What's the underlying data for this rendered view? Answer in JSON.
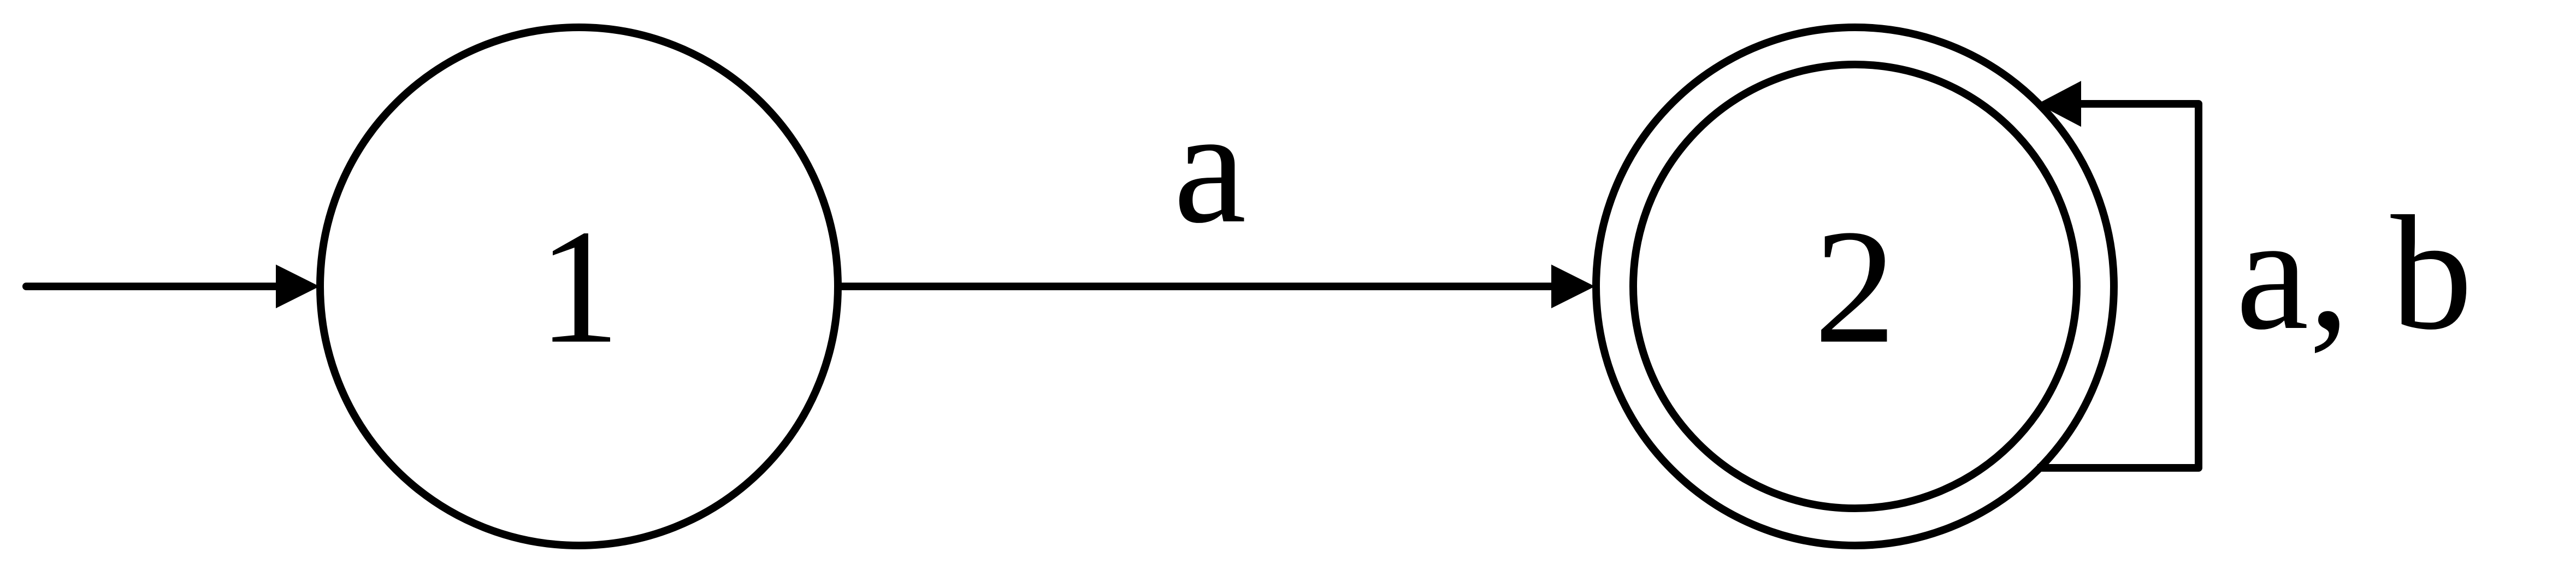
{
  "diagram": {
    "type": "finite-automaton",
    "states": [
      {
        "id": "1",
        "label": "1",
        "initial": true,
        "accepting": false
      },
      {
        "id": "2",
        "label": "2",
        "initial": false,
        "accepting": true
      }
    ],
    "transitions": [
      {
        "from": "1",
        "to": "2",
        "label": "a"
      },
      {
        "from": "2",
        "to": "2",
        "label": "a, b"
      }
    ],
    "colors": {
      "stroke": "#000000",
      "background": "#ffffff"
    }
  }
}
